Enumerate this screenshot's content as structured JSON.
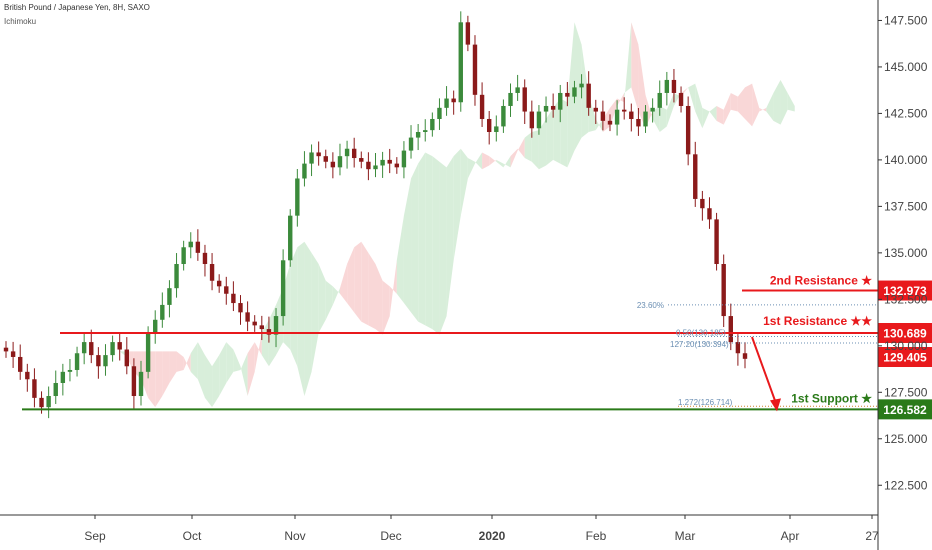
{
  "header": {
    "title": "British Pound / Japanese Yen, 8H, SAXO",
    "indicator": "Ichimoku"
  },
  "colors": {
    "up": "#3b8a3b",
    "down": "#8b1a1a",
    "resistance": "#e8191c",
    "support": "#2a7a19",
    "cloud_bull": "#d4ecd6",
    "cloud_bear": "#f8d3d3"
  },
  "chart_data": {
    "type": "line",
    "title": "British Pound / Japanese Yen, 8H, SAXO",
    "xlabel": "",
    "ylabel": "",
    "ylim": [
      120.9,
      148.6
    ],
    "x_ticks": [
      "Sep",
      "Oct",
      "Nov",
      "Dec",
      "2020",
      "Feb",
      "Mar",
      "Apr",
      "27"
    ],
    "y_ticks": [
      "122.500",
      "125.000",
      "127.500",
      "130.000",
      "132.500",
      "135.000",
      "137.500",
      "140.000",
      "142.500",
      "145.000",
      "147.500"
    ],
    "series": [
      {
        "values": [
          129.7,
          129.4,
          128.6,
          128.2,
          127.2,
          126.7,
          127.3,
          128.0,
          128.6,
          128.7,
          129.6,
          130.2,
          129.5,
          128.9,
          129.5,
          130.2,
          129.8,
          128.9,
          127.3,
          128.6,
          130.7,
          131.4,
          132.2,
          133.1,
          134.4,
          135.3,
          135.6,
          135.0,
          134.4,
          133.5,
          133.2,
          132.8,
          132.3,
          131.8,
          131.3,
          131.1,
          130.9,
          130.6,
          131.6,
          134.6,
          137.0,
          139.0,
          139.8,
          140.4,
          140.2,
          139.9,
          139.6,
          140.2,
          140.6,
          140.1,
          139.9,
          139.5,
          139.7,
          140.0,
          139.8,
          139.6,
          140.5,
          141.2,
          141.5,
          141.6,
          142.2,
          142.8,
          143.3,
          143.1,
          147.4,
          146.2,
          143.5,
          142.2,
          141.5,
          141.8,
          142.9,
          143.6,
          143.9,
          142.6,
          141.7,
          142.6,
          142.9,
          142.7,
          143.6,
          143.4,
          143.9,
          144.1,
          142.8,
          142.6,
          142.1,
          141.9,
          142.7,
          142.6,
          142.2,
          141.8,
          142.6,
          142.8,
          143.6,
          144.3,
          143.6,
          142.9,
          140.3,
          137.9,
          137.4,
          136.8,
          134.4,
          131.6,
          130.2,
          129.6,
          129.3
        ],
        "color": "#3b8a3b"
      }
    ],
    "levels": [
      {
        "label": "2nd Resistance ★",
        "value": "132.973",
        "color": "#e8191c"
      },
      {
        "label": "1st Resistance ★★",
        "value": "130.689",
        "color": "#e8191c"
      },
      {
        "label": "",
        "value": "129.405",
        "color": "#e8191c"
      },
      {
        "label": "1st Support ★",
        "value": "126.582",
        "color": "#2a7a19"
      }
    ],
    "fib_labels": [
      "23.60%",
      "0.50(130.185)",
      "127.20(130.394)",
      "1.272(126.714)"
    ],
    "grid": false,
    "legend": "none"
  }
}
